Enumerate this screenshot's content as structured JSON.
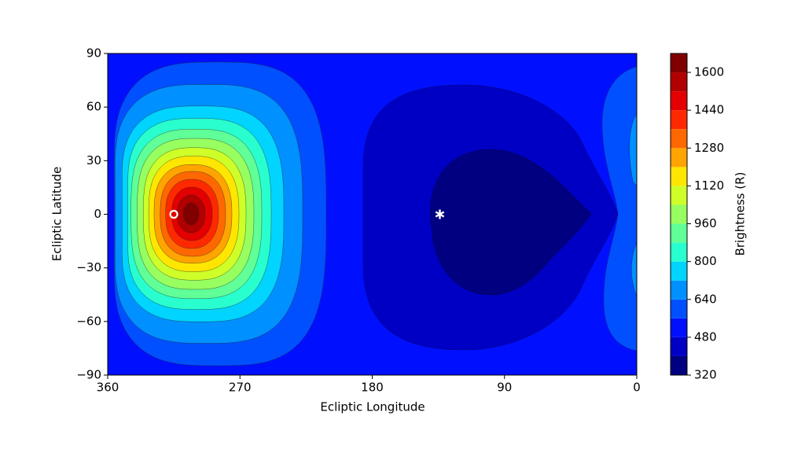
{
  "chart_data": {
    "type": "contourf",
    "xlabel": "Ecliptic Longitude",
    "ylabel": "Ecliptic Latitude",
    "colorbar_label": "Brightness (R)",
    "xlim": [
      360,
      0
    ],
    "xticks": [
      360,
      270,
      180,
      90,
      0
    ],
    "ylim": [
      -90,
      90
    ],
    "yticks": [
      {
        "value": -90,
        "label": "−90"
      },
      {
        "value": -60,
        "label": "−60"
      },
      {
        "value": -30,
        "label": "−30"
      },
      0,
      30,
      60,
      90
    ],
    "levels": [
      320,
      400,
      480,
      560,
      640,
      720,
      800,
      880,
      960,
      1040,
      1120,
      1200,
      1280,
      1360,
      1440,
      1520,
      1600,
      1680
    ],
    "colorbar_ticks": [
      320,
      480,
      640,
      800,
      960,
      1120,
      1280,
      1440,
      1600
    ],
    "colors": [
      "#000080",
      "#0000c4",
      "#0010ff",
      "#0050ff",
      "#0090ff",
      "#00d4ff",
      "#29ffce",
      "#60ff97",
      "#97ff60",
      "#ceff29",
      "#ffe600",
      "#ffa400",
      "#ff6800",
      "#ff2900",
      "#e40000",
      "#b00000",
      "#800000"
    ],
    "markers": [
      {
        "x": 315,
        "y": 0,
        "symbol": "o"
      },
      {
        "x": 134,
        "y": 0,
        "symbol": "*"
      }
    ]
  }
}
